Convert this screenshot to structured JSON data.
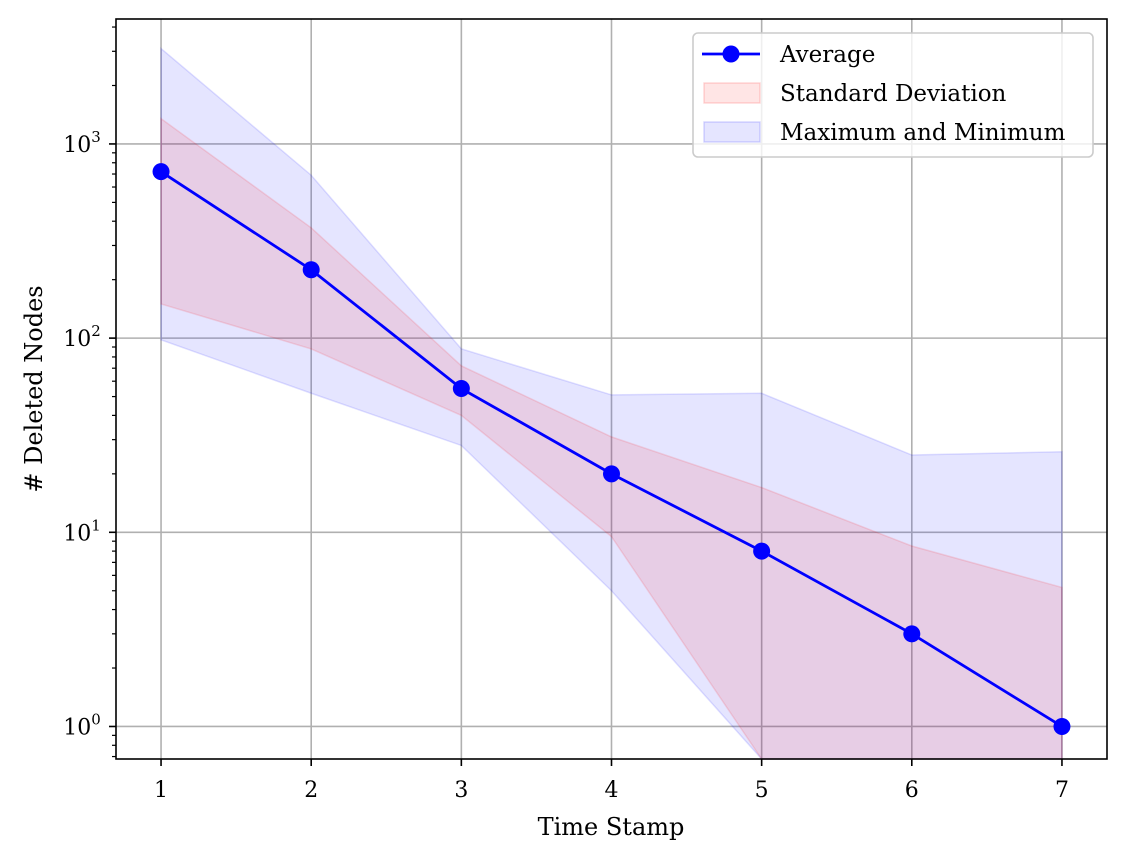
{
  "chart_data": {
    "type": "line",
    "title": "",
    "xlabel": "Time Stamp",
    "ylabel": "# Deleted Nodes",
    "x": [
      1,
      2,
      3,
      4,
      5,
      6,
      7
    ],
    "xlim": [
      0.7,
      7.3
    ],
    "ylim": [
      0.68,
      4400
    ],
    "yscale": "log",
    "x_ticks": [
      "1",
      "2",
      "3",
      "4",
      "5",
      "6",
      "7"
    ],
    "y_ticks": [
      {
        "value": 1,
        "label": "10",
        "exp": "0"
      },
      {
        "value": 10,
        "label": "10",
        "exp": "1"
      },
      {
        "value": 100,
        "label": "10",
        "exp": "2"
      },
      {
        "value": 1000,
        "label": "10",
        "exp": "3"
      }
    ],
    "grid": true,
    "legend_position": "top-right",
    "series": [
      {
        "name": "Average",
        "kind": "line-marker",
        "color": "#0000ff",
        "values": [
          720,
          225,
          55,
          20,
          8,
          3,
          1
        ]
      },
      {
        "name": "Standard Deviation",
        "kind": "band",
        "color": "#ff0000",
        "opacity": 0.1,
        "upper": [
          1350,
          370,
          72,
          31,
          17,
          8.5,
          5.2
        ],
        "lower": [
          150,
          88,
          40,
          9.5,
          0.01,
          0.01,
          0.01
        ]
      },
      {
        "name": "Maximum and Minimum",
        "kind": "band",
        "color": "#0000ff",
        "opacity": 0.1,
        "upper": [
          3100,
          690,
          88,
          51,
          52,
          25,
          26
        ],
        "lower": [
          98,
          52,
          28,
          5,
          0.01,
          0.01,
          0.01
        ]
      }
    ]
  }
}
